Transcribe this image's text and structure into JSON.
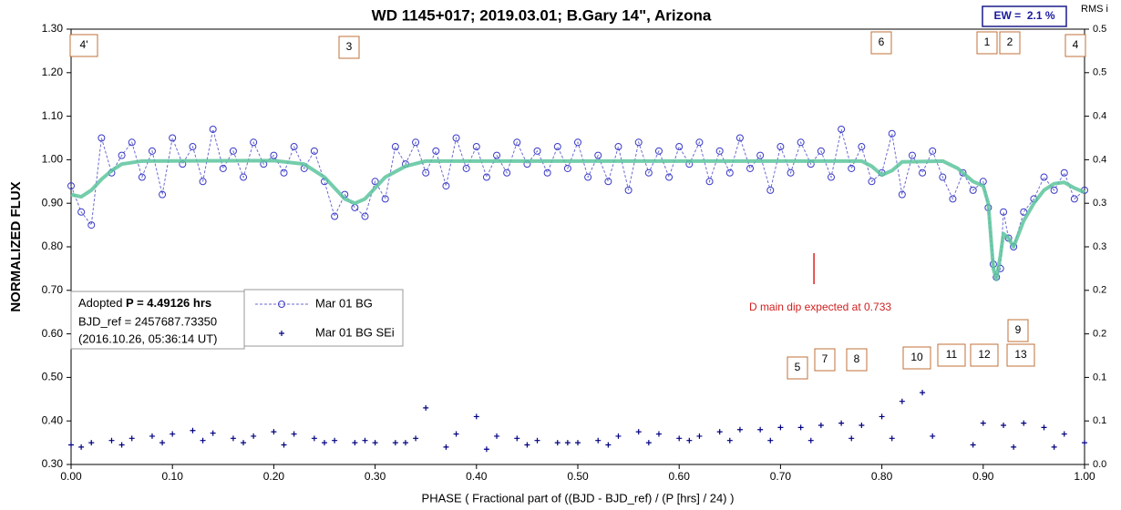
{
  "chart_data": {
    "type": "scatter",
    "title": "WD 1145+017; 2019.03.01; B.Gary 14\", Arizona",
    "xlabel": "PHASE ( Fractional part of ((BJD - BJD_ref) / (P [hrs] / 24) )",
    "ylabel": "NORMALIZED FLUX",
    "y2label": "RMS i",
    "xlim": [
      0,
      1
    ],
    "xticks": [
      {
        "value": 0,
        "label": "0.00"
      },
      {
        "value": 0.1,
        "label": "0.10"
      },
      {
        "value": 0.2,
        "label": "0.20"
      },
      {
        "value": 0.3,
        "label": "0.30"
      },
      {
        "value": 0.4,
        "label": "0.40"
      },
      {
        "value": 0.5,
        "label": "0.50"
      },
      {
        "value": 0.6,
        "label": "0.60"
      },
      {
        "value": 0.7,
        "label": "0.70"
      },
      {
        "value": 0.8,
        "label": "0.80"
      },
      {
        "value": 0.9,
        "label": "0.90"
      },
      {
        "value": 1,
        "label": "1.00"
      }
    ],
    "ylim": [
      0.3,
      1.3
    ],
    "yticks": [
      {
        "value": 0.3,
        "label": "0.30"
      },
      {
        "value": 0.4,
        "label": "0.40"
      },
      {
        "value": 0.5,
        "label": "0.50"
      },
      {
        "value": 0.6,
        "label": "0.60"
      },
      {
        "value": 0.7,
        "label": "0.70"
      },
      {
        "value": 0.8,
        "label": "0.80"
      },
      {
        "value": 0.9,
        "label": "0.90"
      },
      {
        "value": 1,
        "label": "1.00"
      },
      {
        "value": 1.1,
        "label": "1.10"
      },
      {
        "value": 1.2,
        "label": "1.20"
      },
      {
        "value": 1.3,
        "label": "1.30"
      }
    ],
    "y2lim": [
      0,
      0.5
    ],
    "y2ticks": [
      {
        "value": 0,
        "label": "0.0"
      },
      {
        "value": 0.05,
        "label": "0.1"
      },
      {
        "value": 0.1,
        "label": "0.1"
      },
      {
        "value": 0.15,
        "label": "0.2"
      },
      {
        "value": 0.2,
        "label": "0.2"
      },
      {
        "value": 0.25,
        "label": "0.3"
      },
      {
        "value": 0.3,
        "label": "0.3"
      },
      {
        "value": 0.35,
        "label": "0.4"
      },
      {
        "value": 0.4,
        "label": "0.4"
      },
      {
        "value": 0.45,
        "label": "0.5"
      },
      {
        "value": 0.5,
        "label": "0.5"
      }
    ],
    "series": [
      {
        "name": "Mar 01 BG",
        "color": "#3a3ac8",
        "x": [
          0,
          0.01,
          0.02,
          0.03,
          0.04,
          0.05,
          0.06,
          0.07,
          0.08,
          0.09,
          0.1,
          0.11,
          0.12,
          0.13,
          0.14,
          0.15,
          0.16,
          0.17,
          0.18,
          0.19,
          0.2,
          0.21,
          0.22,
          0.23,
          0.24,
          0.25,
          0.26,
          0.27,
          0.28,
          0.29,
          0.3,
          0.31,
          0.32,
          0.33,
          0.34,
          0.35,
          0.36,
          0.37,
          0.38,
          0.39,
          0.4,
          0.41,
          0.42,
          0.43,
          0.44,
          0.45,
          0.46,
          0.47,
          0.48,
          0.49,
          0.5,
          0.51,
          0.52,
          0.53,
          0.54,
          0.55,
          0.56,
          0.57,
          0.58,
          0.59,
          0.6,
          0.61,
          0.62,
          0.63,
          0.64,
          0.65,
          0.66,
          0.67,
          0.68,
          0.69,
          0.7,
          0.71,
          0.72,
          0.73,
          0.74,
          0.75,
          0.76,
          0.77,
          0.78,
          0.79,
          0.8,
          0.81,
          0.82,
          0.83,
          0.84,
          0.85,
          0.86,
          0.87,
          0.88,
          0.89,
          0.9,
          0.905,
          0.91,
          0.913,
          0.917,
          0.92,
          0.925,
          0.93,
          0.94,
          0.95,
          0.96,
          0.97,
          0.98,
          0.99,
          1
        ],
        "values": [
          0.94,
          0.88,
          0.85,
          1.05,
          0.97,
          1.01,
          1.04,
          0.96,
          1.02,
          0.92,
          1.05,
          0.99,
          1.03,
          0.95,
          1.07,
          0.98,
          1.02,
          0.96,
          1.04,
          0.99,
          1.01,
          0.97,
          1.03,
          0.98,
          1.02,
          0.95,
          0.87,
          0.92,
          0.89,
          0.87,
          0.95,
          0.91,
          1.03,
          0.99,
          1.04,
          0.97,
          1.02,
          0.94,
          1.05,
          0.98,
          1.03,
          0.96,
          1.01,
          0.97,
          1.04,
          0.99,
          1.02,
          0.97,
          1.03,
          0.98,
          1.04,
          0.96,
          1.01,
          0.95,
          1.03,
          0.93,
          1.04,
          0.97,
          1.02,
          0.96,
          1.03,
          0.99,
          1.04,
          0.95,
          1.02,
          0.97,
          1.05,
          0.98,
          1.01,
          0.93,
          1.03,
          0.97,
          1.04,
          0.99,
          1.02,
          0.96,
          1.07,
          0.98,
          1.03,
          0.95,
          0.97,
          1.06,
          0.92,
          1.01,
          0.97,
          1.02,
          0.96,
          0.91,
          0.97,
          0.93,
          0.95,
          0.89,
          0.76,
          0.73,
          0.75,
          0.88,
          0.82,
          0.8,
          0.88,
          0.91,
          0.96,
          0.93,
          0.97,
          0.91,
          0.93
        ]
      },
      {
        "name": "Mar 01 BG SEi",
        "color": "#000080",
        "axis": "y2",
        "x": [
          0,
          0.02,
          0.04,
          0.06,
          0.08,
          0.1,
          0.12,
          0.14,
          0.16,
          0.18,
          0.2,
          0.22,
          0.24,
          0.26,
          0.28,
          0.3,
          0.32,
          0.34,
          0.35,
          0.38,
          0.4,
          0.42,
          0.44,
          0.46,
          0.48,
          0.5,
          0.52,
          0.54,
          0.56,
          0.58,
          0.6,
          0.62,
          0.64,
          0.66,
          0.68,
          0.7,
          0.72,
          0.74,
          0.76,
          0.78,
          0.8,
          0.82,
          0.84,
          0.9,
          0.92,
          0.94,
          0.96,
          0.98,
          1,
          0.01,
          0.05,
          0.09,
          0.13,
          0.17,
          0.21,
          0.25,
          0.29,
          0.33,
          0.37,
          0.41,
          0.45,
          0.49,
          0.53,
          0.57,
          0.61,
          0.65,
          0.69,
          0.73,
          0.77,
          0.81,
          0.85,
          0.89,
          0.93,
          0.97
        ],
        "values": [
          0.0225,
          0.025,
          0.0275,
          0.03,
          0.0325,
          0.035,
          0.039,
          0.036,
          0.03,
          0.0325,
          0.0375,
          0.035,
          0.03,
          0.0275,
          0.025,
          0.025,
          0.025,
          0.03,
          0.065,
          0.035,
          0.055,
          0.0325,
          0.03,
          0.0275,
          0.025,
          0.025,
          0.0275,
          0.0325,
          0.0375,
          0.035,
          0.03,
          0.0325,
          0.0375,
          0.04,
          0.04,
          0.0425,
          0.0425,
          0.045,
          0.0475,
          0.045,
          0.055,
          0.0725,
          0.0825,
          0.0475,
          0.045,
          0.0475,
          0.0425,
          0.035,
          0.025,
          0.02,
          0.0225,
          0.025,
          0.0275,
          0.025,
          0.0225,
          0.025,
          0.0275,
          0.025,
          0.02,
          0.0175,
          0.0225,
          0.025,
          0.0225,
          0.025,
          0.0275,
          0.0275,
          0.0275,
          0.0275,
          0.03,
          0.03,
          0.0325,
          0.0225,
          0.02,
          0.02
        ]
      },
      {
        "color": "#5cc49c",
        "x": [
          0,
          0.01,
          0.02,
          0.03,
          0.04,
          0.05,
          0.07,
          0.2,
          0.23,
          0.25,
          0.27,
          0.28,
          0.29,
          0.31,
          0.33,
          0.35,
          0.78,
          0.79,
          0.8,
          0.81,
          0.82,
          0.86,
          0.875,
          0.89,
          0.9,
          0.905,
          0.91,
          0.913,
          0.917,
          0.92,
          0.925,
          0.93,
          0.94,
          0.95,
          0.96,
          0.97,
          0.98,
          0.99,
          1
        ],
        "values": [
          0.92,
          0.915,
          0.93,
          0.955,
          0.975,
          0.99,
          0.997,
          0.998,
          0.99,
          0.96,
          0.91,
          0.9,
          0.91,
          0.96,
          0.985,
          0.997,
          0.997,
          0.985,
          0.965,
          0.975,
          0.995,
          0.997,
          0.98,
          0.95,
          0.94,
          0.9,
          0.75,
          0.725,
          0.78,
          0.83,
          0.82,
          0.8,
          0.86,
          0.9,
          0.93,
          0.945,
          0.948,
          0.935,
          0.925
        ]
      }
    ],
    "annotations": [
      "4'",
      "3",
      "6",
      "1",
      "2",
      "4",
      "5",
      "7",
      "8",
      "10",
      "11",
      "12",
      "13",
      "9"
    ],
    "info": {
      "prefix": "Adopted ",
      "period": "P = 4.49126 hrs",
      "bjd_ref": "BJD_ref = 2457687.73350",
      "date": "(2016.10.26, 05:36:14 UT)"
    },
    "ew": "EW =  2.1 %",
    "expected_dip": {
      "text": "D main dip expected at 0.733",
      "x": 0.733
    }
  }
}
